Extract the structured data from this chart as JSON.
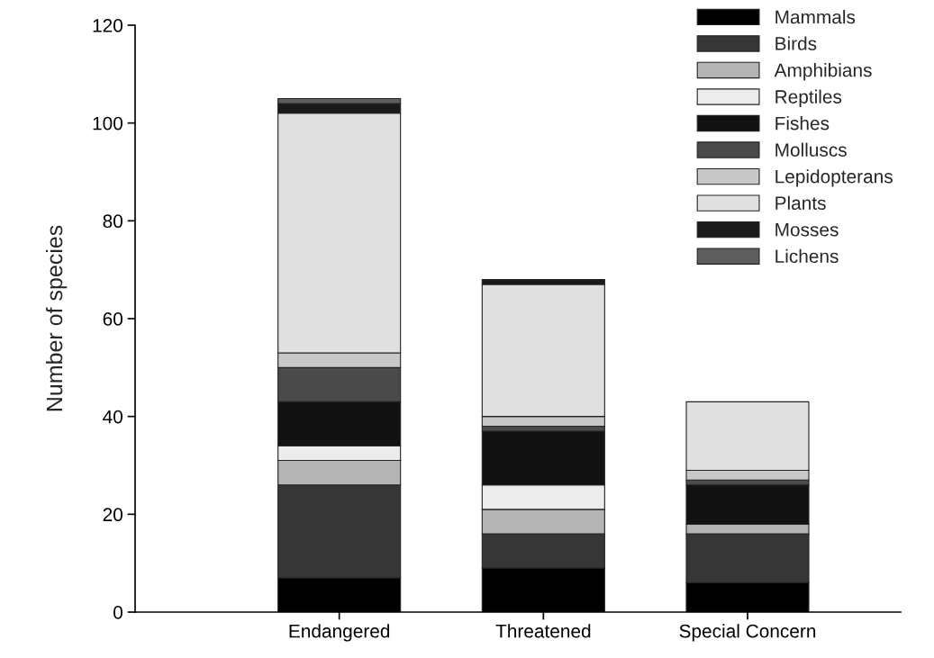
{
  "chart_data": {
    "type": "bar",
    "stacked": true,
    "ylabel": "Number of species",
    "categories": [
      "Endangered",
      "Threatened",
      "Special Concern"
    ],
    "series": [
      {
        "name": "Mammals",
        "color": "#000000",
        "values": [
          7,
          9,
          6
        ]
      },
      {
        "name": "Birds",
        "color": "#363636",
        "values": [
          19,
          7,
          10
        ]
      },
      {
        "name": "Amphibians",
        "color": "#b4b4b4",
        "values": [
          5,
          5,
          2
        ]
      },
      {
        "name": "Reptiles",
        "color": "#ececec",
        "values": [
          3,
          5,
          0
        ]
      },
      {
        "name": "Fishes",
        "color": "#121212",
        "values": [
          9,
          11,
          8
        ]
      },
      {
        "name": "Molluscs",
        "color": "#4a4a4a",
        "values": [
          7,
          1,
          1
        ]
      },
      {
        "name": "Lepidopterans",
        "color": "#c8c8c8",
        "values": [
          3,
          2,
          2
        ]
      },
      {
        "name": "Plants",
        "color": "#e0e0e0",
        "values": [
          49,
          27,
          14
        ]
      },
      {
        "name": "Mosses",
        "color": "#1a1a1a",
        "values": [
          2,
          1,
          0
        ]
      },
      {
        "name": "Lichens",
        "color": "#5e5e5e",
        "values": [
          1,
          0,
          0
        ]
      }
    ],
    "ylim": [
      0,
      120
    ],
    "yticks": [
      0,
      20,
      40,
      60,
      80,
      100,
      120
    ],
    "grid": false,
    "legend": "top right"
  }
}
